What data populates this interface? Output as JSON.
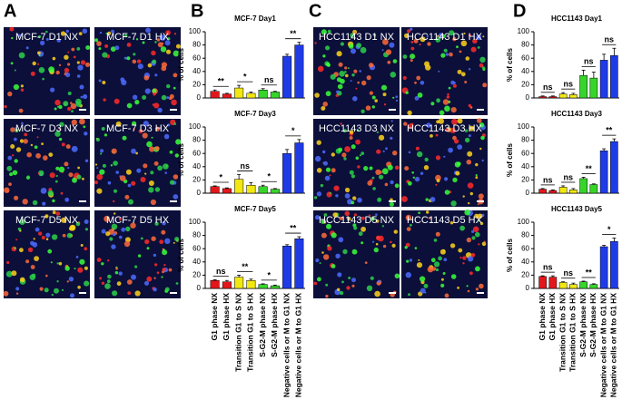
{
  "panel_labels": [
    "A",
    "B",
    "C",
    "D"
  ],
  "images": {
    "A": [
      "MCF-7 D1 NX",
      "MCF-7 D1 HX",
      "MCF-7 D3 NX",
      "MCF-7 D3 HX",
      "MCF-7 D5 NX",
      "MCF-7 D5 HX"
    ],
    "C": [
      "HCC1143 D1 NX",
      "HCC1143 D1 HX",
      "HCC1143 D3 NX",
      "HCC1143 D3 HX",
      "HCC1143 D5 NX",
      "HCC1143 D5 HX"
    ]
  },
  "chart_data": [
    {
      "type": "bar",
      "title": "MCF-7 Day1",
      "y_label": "% of cells",
      "ylim": [
        0,
        100
      ],
      "yticks": [
        0,
        20,
        40,
        60,
        80,
        100
      ],
      "colors": [
        "#e3171b",
        "#e3171b",
        "#f2e711",
        "#f2e711",
        "#36d52a",
        "#36d52a",
        "#1f3be6",
        "#1f3be6"
      ],
      "values": [
        10,
        6,
        15,
        7,
        12,
        9,
        63,
        80
      ],
      "errors": [
        2,
        1,
        4,
        2,
        2,
        1,
        3,
        4
      ],
      "annotations": [
        "**",
        "*",
        "ns",
        "**"
      ]
    },
    {
      "type": "bar",
      "title": "MCF-7 Day3",
      "y_label": "% of cells",
      "ylim": [
        0,
        100
      ],
      "yticks": [
        0,
        20,
        40,
        60,
        80,
        100
      ],
      "colors": [
        "#e3171b",
        "#e3171b",
        "#f2e711",
        "#f2e711",
        "#36d52a",
        "#36d52a",
        "#1f3be6",
        "#1f3be6"
      ],
      "values": [
        10,
        7,
        21,
        12,
        10,
        6,
        60,
        76
      ],
      "errors": [
        1,
        1,
        7,
        4,
        2,
        1,
        6,
        5
      ],
      "annotations": [
        "*",
        "ns",
        "*",
        "*"
      ]
    },
    {
      "type": "bar",
      "title": "MCF-7 Day5",
      "y_label": "% of cells",
      "ylim": [
        0,
        100
      ],
      "yticks": [
        0,
        20,
        40,
        60,
        80,
        100
      ],
      "colors": [
        "#e3171b",
        "#e3171b",
        "#f2e711",
        "#f2e711",
        "#36d52a",
        "#36d52a",
        "#1f3be6",
        "#1f3be6"
      ],
      "values": [
        12,
        10,
        17,
        12,
        6,
        4,
        64,
        75
      ],
      "errors": [
        1,
        2,
        3,
        2,
        1,
        1,
        2,
        3
      ],
      "annotations": [
        "ns",
        "**",
        "*",
        "**"
      ],
      "categories": [
        "G1 phase NX",
        "G1 phase HX",
        "Transition G1 to S NX",
        "Transition G1 to S HX",
        "S-G2-M phase NX",
        "S-G2-M phase HX",
        "Negative cells or M to G1 NX",
        "Negative cells or M to G1 HX"
      ]
    },
    {
      "type": "bar",
      "title": "HCC1143 Day1",
      "y_label": "% of cells",
      "ylim": [
        0,
        100
      ],
      "yticks": [
        0,
        20,
        40,
        60,
        80,
        100
      ],
      "colors": [
        "#e3171b",
        "#e3171b",
        "#f2e711",
        "#f2e711",
        "#36d52a",
        "#36d52a",
        "#1f3be6",
        "#1f3be6"
      ],
      "values": [
        2,
        2,
        6,
        5,
        34,
        30,
        57,
        64
      ],
      "errors": [
        1,
        1,
        2,
        2,
        8,
        9,
        9,
        11
      ],
      "annotations": [
        "ns",
        "ns",
        "ns",
        "ns"
      ]
    },
    {
      "type": "bar",
      "title": "HCC1143 Day3",
      "y_label": "% of cells",
      "ylim": [
        0,
        100
      ],
      "yticks": [
        0,
        20,
        40,
        60,
        80,
        100
      ],
      "colors": [
        "#e3171b",
        "#e3171b",
        "#f2e711",
        "#f2e711",
        "#36d52a",
        "#36d52a",
        "#1f3be6",
        "#1f3be6"
      ],
      "values": [
        6,
        4,
        9,
        5,
        22,
        13,
        64,
        78
      ],
      "errors": [
        1,
        1,
        2,
        2,
        2,
        1,
        3,
        4
      ],
      "annotations": [
        "ns",
        "ns",
        "**",
        "**"
      ]
    },
    {
      "type": "bar",
      "title": "HCC1143 Day5",
      "y_label": "% of cells",
      "ylim": [
        0,
        100
      ],
      "yticks": [
        0,
        20,
        40,
        60,
        80,
        100
      ],
      "colors": [
        "#e3171b",
        "#e3171b",
        "#f2e711",
        "#f2e711",
        "#36d52a",
        "#36d52a",
        "#1f3be6",
        "#1f3be6"
      ],
      "values": [
        18,
        17,
        9,
        6,
        10,
        6,
        63,
        71
      ],
      "errors": [
        1,
        2,
        1,
        2,
        1,
        1,
        2,
        5
      ],
      "annotations": [
        "ns",
        "ns",
        "**",
        "*"
      ],
      "categories": [
        "G1 phase NX",
        "G1 phase HX",
        "Transition G1 to S NX",
        "Transition G1 to S HX",
        "S-G2-M phase NX",
        "S-G2-M phase HX",
        "Negative cells or M to G1 NX",
        "Negative cells or M to G1 HX"
      ]
    }
  ]
}
